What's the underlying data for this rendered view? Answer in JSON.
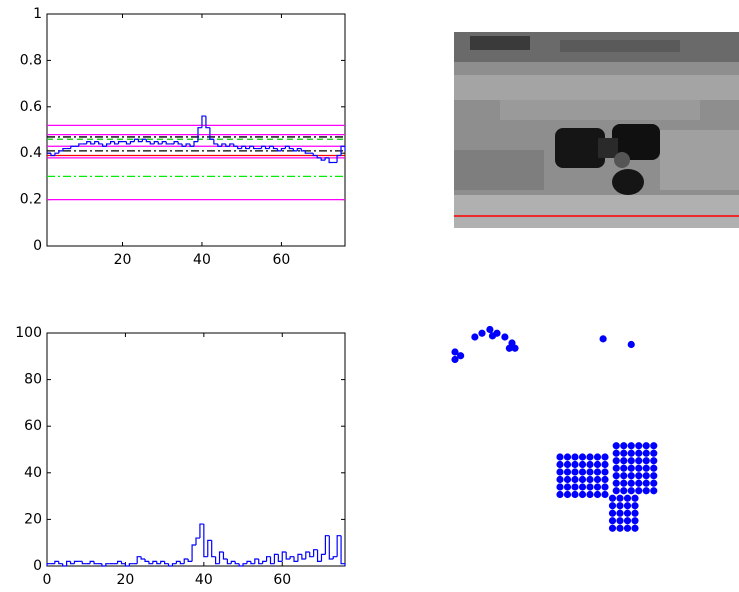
{
  "chart_data": [
    {
      "type": "stairs",
      "x": [
        1,
        2,
        3,
        4,
        5,
        6,
        7,
        8,
        9,
        10,
        11,
        12,
        13,
        14,
        15,
        16,
        17,
        18,
        19,
        20,
        21,
        22,
        23,
        24,
        25,
        26,
        27,
        28,
        29,
        30,
        31,
        32,
        33,
        34,
        35,
        36,
        37,
        38,
        39,
        40,
        41,
        42,
        43,
        44,
        45,
        46,
        47,
        48,
        49,
        50,
        51,
        52,
        53,
        54,
        55,
        56,
        57,
        58,
        59,
        60,
        61,
        62,
        63,
        64,
        65,
        66,
        67,
        68,
        69,
        70,
        71,
        72,
        73,
        74,
        75,
        76
      ],
      "values": [
        0.4,
        0.39,
        0.4,
        0.41,
        0.42,
        0.42,
        0.43,
        0.43,
        0.44,
        0.44,
        0.45,
        0.44,
        0.45,
        0.44,
        0.43,
        0.44,
        0.45,
        0.44,
        0.45,
        0.45,
        0.44,
        0.45,
        0.46,
        0.45,
        0.46,
        0.45,
        0.44,
        0.45,
        0.44,
        0.45,
        0.44,
        0.44,
        0.45,
        0.44,
        0.43,
        0.44,
        0.43,
        0.45,
        0.51,
        0.56,
        0.51,
        0.46,
        0.44,
        0.43,
        0.44,
        0.43,
        0.44,
        0.43,
        0.42,
        0.43,
        0.42,
        0.43,
        0.42,
        0.42,
        0.43,
        0.42,
        0.43,
        0.42,
        0.41,
        0.42,
        0.43,
        0.42,
        0.41,
        0.42,
        0.41,
        0.4,
        0.4,
        0.39,
        0.38,
        0.37,
        0.38,
        0.36,
        0.36,
        0.39,
        0.43,
        0.41
      ],
      "color": "#0000ff",
      "reference_lines": [
        {
          "value": 0.52,
          "color": "#ff00ff",
          "style": "solid"
        },
        {
          "value": 0.48,
          "color": "#ff00ff",
          "style": "solid"
        },
        {
          "value": 0.47,
          "color": "#000000",
          "style": "dashdot"
        },
        {
          "value": 0.46,
          "color": "#00cc00",
          "style": "dashed"
        },
        {
          "value": 0.43,
          "color": "#ff00ff",
          "style": "solid"
        },
        {
          "value": 0.41,
          "color": "#000000",
          "style": "dashdot"
        },
        {
          "value": 0.39,
          "color": "#ff0000",
          "style": "solid"
        },
        {
          "value": 0.38,
          "color": "#ff00ff",
          "style": "solid"
        },
        {
          "value": 0.3,
          "color": "#00ee00",
          "style": "dashdot"
        },
        {
          "value": 0.2,
          "color": "#ff00ff",
          "style": "solid"
        }
      ],
      "xlim": [
        1,
        76
      ],
      "ylim": [
        0,
        1
      ],
      "xticks": [
        20,
        40,
        60
      ],
      "yticks": [
        0,
        0.2,
        0.4,
        0.6,
        0.8,
        1
      ]
    },
    {
      "type": "histogram",
      "bins": [
        0,
        1,
        2,
        3,
        4,
        5,
        6,
        7,
        8,
        9,
        10,
        11,
        12,
        13,
        14,
        15,
        16,
        17,
        18,
        19,
        20,
        21,
        22,
        23,
        24,
        25,
        26,
        27,
        28,
        29,
        30,
        31,
        32,
        33,
        34,
        35,
        36,
        37,
        38,
        39,
        40,
        41,
        42,
        43,
        44,
        45,
        46,
        47,
        48,
        49,
        50,
        51,
        52,
        53,
        54,
        55,
        56,
        57,
        58,
        59,
        60,
        61,
        62,
        63,
        64,
        65,
        66,
        67,
        68,
        69,
        70,
        71,
        72,
        73,
        74,
        75,
        76
      ],
      "values": [
        1,
        1,
        2,
        1,
        0,
        2,
        1,
        2,
        2,
        1,
        1,
        2,
        1,
        1,
        0,
        1,
        1,
        1,
        2,
        1,
        0,
        1,
        1,
        4,
        3,
        2,
        1,
        2,
        1,
        2,
        1,
        0,
        1,
        2,
        1,
        3,
        2,
        9,
        12,
        18,
        4,
        11,
        4,
        1,
        6,
        3,
        1,
        2,
        1,
        0,
        1,
        2,
        1,
        3,
        1,
        2,
        4,
        1,
        5,
        2,
        6,
        3,
        4,
        2,
        5,
        3,
        6,
        4,
        7,
        2,
        5,
        13,
        3,
        4,
        13,
        1
      ],
      "color": "#0000ff",
      "xlim": [
        0,
        76
      ],
      "ylim": [
        0,
        100
      ],
      "xticks": [
        0,
        20,
        40,
        60
      ],
      "yticks": [
        0,
        20,
        40,
        60,
        80,
        100
      ]
    },
    {
      "type": "scatter",
      "color": "#0000ff",
      "xlim": [
        0,
        76
      ],
      "ylim": [
        58,
        0
      ],
      "x": [
        4,
        4,
        5.5,
        9.3,
        11.2,
        13.3,
        14,
        15.2,
        17.3,
        19.2,
        20,
        18.5,
        43.5,
        51,
        32,
        34,
        36,
        38,
        40,
        42,
        44,
        32,
        34,
        36,
        38,
        40,
        42,
        44,
        32,
        34,
        36,
        38,
        40,
        42,
        44,
        32,
        34,
        36,
        38,
        40,
        42,
        44,
        32,
        34,
        36,
        38,
        40,
        42,
        44,
        32,
        34,
        36,
        38,
        40,
        42,
        44,
        47,
        49,
        51,
        53,
        55,
        57,
        47,
        49,
        51,
        53,
        55,
        57,
        47,
        49,
        51,
        53,
        55,
        57,
        47,
        49,
        51,
        53,
        55,
        57,
        47,
        49,
        51,
        53,
        55,
        57,
        47,
        49,
        51,
        53,
        55,
        57,
        47,
        49,
        51,
        53,
        55,
        57,
        46,
        48,
        50,
        52,
        46,
        48,
        50,
        52,
        46,
        48,
        50,
        52,
        46,
        48,
        50,
        52,
        46,
        48,
        50,
        52
      ],
      "values": [
        8,
        10,
        9,
        4,
        3,
        2,
        3.7,
        3,
        4,
        5.6,
        7,
        7,
        4.5,
        6,
        36,
        36,
        36,
        36,
        36,
        36,
        36,
        38,
        38,
        38,
        38,
        38,
        38,
        38,
        40,
        40,
        40,
        40,
        40,
        40,
        40,
        42,
        42,
        42,
        42,
        42,
        42,
        42,
        44,
        44,
        44,
        44,
        44,
        44,
        44,
        46,
        46,
        46,
        46,
        46,
        46,
        46,
        33,
        33,
        33,
        33,
        33,
        33,
        35,
        35,
        35,
        35,
        35,
        35,
        37,
        37,
        37,
        37,
        37,
        37,
        39,
        39,
        39,
        39,
        39,
        39,
        41,
        41,
        41,
        41,
        41,
        41,
        43,
        43,
        43,
        43,
        43,
        43,
        45,
        45,
        45,
        45,
        45,
        45,
        47,
        47,
        47,
        47,
        49,
        49,
        49,
        49,
        51,
        51,
        51,
        51,
        53,
        53,
        53,
        53,
        55,
        55,
        55,
        55
      ]
    }
  ]
}
